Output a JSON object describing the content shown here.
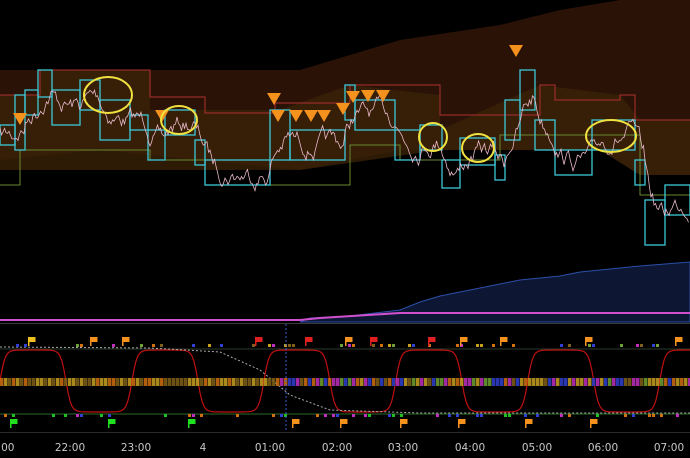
{
  "time_axis": {
    "labels": [
      ":00",
      "22:00",
      "23:00",
      "4",
      "01:00",
      "02:00",
      "03:00",
      "04:00",
      "05:00",
      "06:00",
      "07:00"
    ]
  }
}
